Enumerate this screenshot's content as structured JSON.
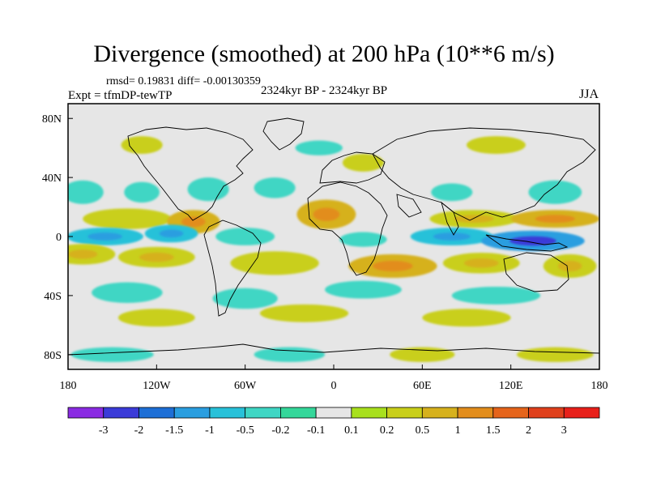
{
  "chart_data": {
    "type": "heatmap",
    "title": "Divergence (smoothed) at 200 hPa (10**6 m/s)",
    "rmsd_text": "rmsd= 0.19831 diff= -0.00130359",
    "experiment": "Expt = tfmDP-tewTP",
    "center_label": "2324kyr BP - 2324kyr BP",
    "season": "JJA",
    "x_ticks": [
      "180",
      "120W",
      "60W",
      "0",
      "60E",
      "120E",
      "180"
    ],
    "y_ticks": [
      "80N",
      "40N",
      "0",
      "40S",
      "80S"
    ],
    "xlim": [
      -180,
      180
    ],
    "ylim": [
      -90,
      90
    ],
    "colorbar": {
      "labels": [
        "-3",
        "-2",
        "-1.5",
        "-1",
        "-0.5",
        "-0.2",
        "-0.1",
        "0.1",
        "0.2",
        "0.5",
        "1",
        "1.5",
        "2",
        "3"
      ],
      "colors": [
        "#8a2be2",
        "#3b3bd8",
        "#1e6fd6",
        "#2a9ee0",
        "#28c1d9",
        "#3fd6c4",
        "#34d79a",
        "#e6e6e6",
        "#a8e01e",
        "#c9cf1a",
        "#d6b11d",
        "#e28d1c",
        "#e5641b",
        "#e0401c",
        "#e8201a"
      ]
    },
    "blobs": [
      {
        "lon": -170,
        "lat": 30,
        "rx": 14,
        "ry": 8,
        "v": -0.3
      },
      {
        "lon": -130,
        "lat": 30,
        "rx": 12,
        "ry": 7,
        "v": -0.3
      },
      {
        "lon": -85,
        "lat": 32,
        "rx": 14,
        "ry": 8,
        "v": -0.3
      },
      {
        "lon": -40,
        "lat": 33,
        "rx": 14,
        "ry": 7,
        "v": -0.25
      },
      {
        "lon": 80,
        "lat": 30,
        "rx": 14,
        "ry": 6,
        "v": -0.3
      },
      {
        "lon": 150,
        "lat": 30,
        "rx": 18,
        "ry": 8,
        "v": -0.35
      },
      {
        "lon": -140,
        "lat": 12,
        "rx": 30,
        "ry": 7,
        "v": 0.35
      },
      {
        "lon": -95,
        "lat": 10,
        "rx": 18,
        "ry": 8,
        "v": 0.6
      },
      {
        "lon": -5,
        "lat": 15,
        "rx": 20,
        "ry": 10,
        "v": 0.8
      },
      {
        "lon": 95,
        "lat": 12,
        "rx": 30,
        "ry": 6,
        "v": 0.5
      },
      {
        "lon": 150,
        "lat": 12,
        "rx": 30,
        "ry": 6,
        "v": 0.6
      },
      {
        "lon": -155,
        "lat": 0,
        "rx": 26,
        "ry": 6,
        "v": -0.8
      },
      {
        "lon": -110,
        "lat": 2,
        "rx": 18,
        "ry": 6,
        "v": -0.6
      },
      {
        "lon": -60,
        "lat": 0,
        "rx": 20,
        "ry": 6,
        "v": -0.4
      },
      {
        "lon": 20,
        "lat": -2,
        "rx": 16,
        "ry": 5,
        "v": -0.35
      },
      {
        "lon": 80,
        "lat": 0,
        "rx": 28,
        "ry": 6,
        "v": -0.8
      },
      {
        "lon": 135,
        "lat": -3,
        "rx": 35,
        "ry": 7,
        "v": -1.2
      },
      {
        "lon": -170,
        "lat": -12,
        "rx": 22,
        "ry": 7,
        "v": 0.5
      },
      {
        "lon": -120,
        "lat": -14,
        "rx": 26,
        "ry": 7,
        "v": 0.5
      },
      {
        "lon": -40,
        "lat": -18,
        "rx": 30,
        "ry": 8,
        "v": 0.4
      },
      {
        "lon": 40,
        "lat": -20,
        "rx": 30,
        "ry": 8,
        "v": 0.6
      },
      {
        "lon": 100,
        "lat": -18,
        "rx": 26,
        "ry": 7,
        "v": 0.5
      },
      {
        "lon": 160,
        "lat": -20,
        "rx": 18,
        "ry": 8,
        "v": 0.5
      },
      {
        "lon": -140,
        "lat": -38,
        "rx": 24,
        "ry": 7,
        "v": -0.3
      },
      {
        "lon": -60,
        "lat": -42,
        "rx": 22,
        "ry": 7,
        "v": -0.3
      },
      {
        "lon": 20,
        "lat": -36,
        "rx": 26,
        "ry": 6,
        "v": -0.3
      },
      {
        "lon": 110,
        "lat": -40,
        "rx": 30,
        "ry": 6,
        "v": -0.25
      },
      {
        "lon": -120,
        "lat": -55,
        "rx": 26,
        "ry": 6,
        "v": 0.25
      },
      {
        "lon": -20,
        "lat": -52,
        "rx": 30,
        "ry": 6,
        "v": 0.25
      },
      {
        "lon": 90,
        "lat": -55,
        "rx": 30,
        "ry": 6,
        "v": 0.3
      },
      {
        "lon": -150,
        "lat": -80,
        "rx": 28,
        "ry": 5,
        "v": -0.25
      },
      {
        "lon": -30,
        "lat": -80,
        "rx": 24,
        "ry": 5,
        "v": -0.3
      },
      {
        "lon": 60,
        "lat": -80,
        "rx": 22,
        "ry": 5,
        "v": 0.35
      },
      {
        "lon": 150,
        "lat": -80,
        "rx": 26,
        "ry": 5,
        "v": 0.3
      },
      {
        "lon": -130,
        "lat": 62,
        "rx": 14,
        "ry": 6,
        "v": 0.3
      },
      {
        "lon": -10,
        "lat": 60,
        "rx": 16,
        "ry": 5,
        "v": -0.3
      },
      {
        "lon": 110,
        "lat": 62,
        "rx": 20,
        "ry": 6,
        "v": 0.3
      },
      {
        "lon": 20,
        "lat": 50,
        "rx": 14,
        "ry": 6,
        "v": 0.4
      }
    ]
  }
}
